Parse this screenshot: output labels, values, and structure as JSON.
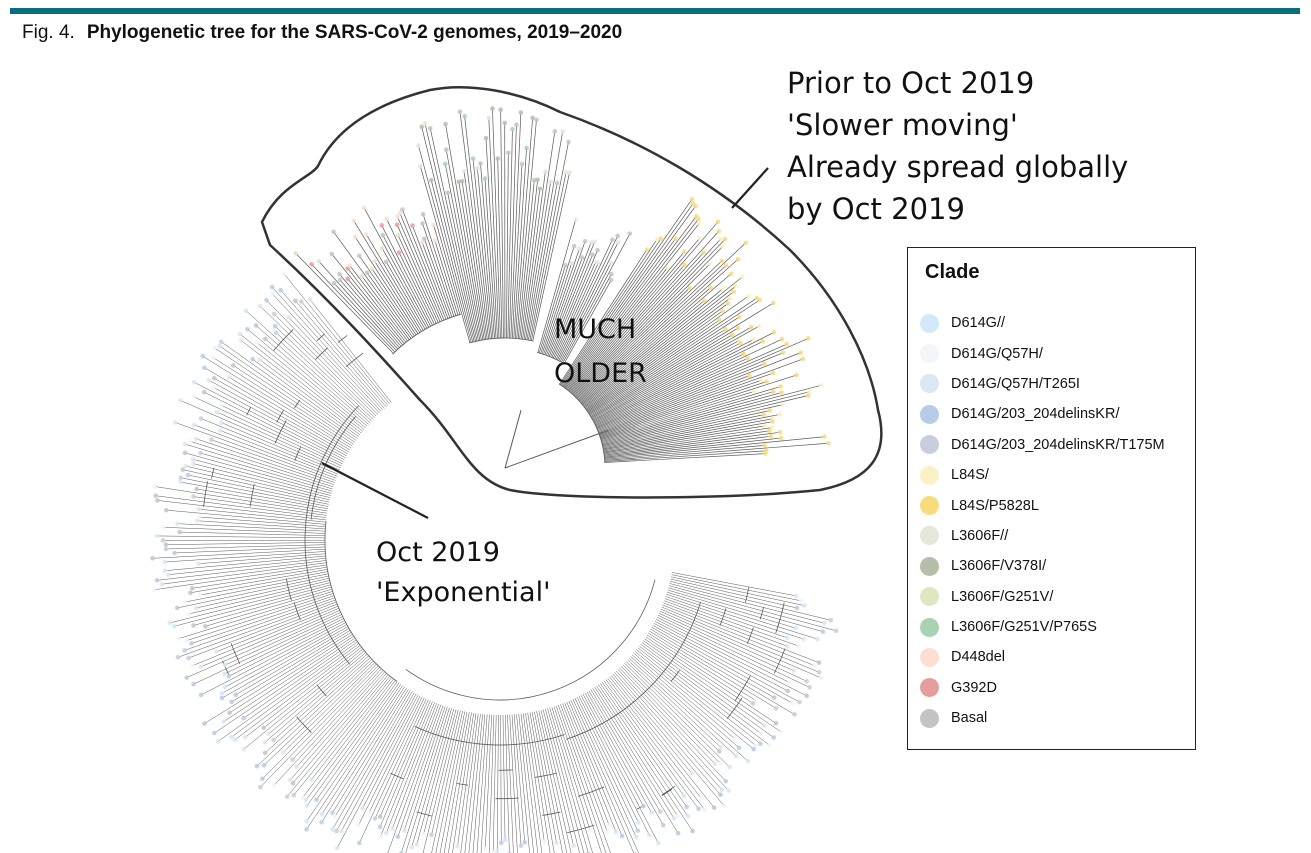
{
  "figure": {
    "number": "Fig. 4.",
    "title": "Phylogenetic tree for the SARS-CoV-2 genomes, 2019–2020"
  },
  "annotations": {
    "prior": [
      "Prior to Oct 2019",
      "'Slower moving'",
      "Already spread globally",
      "by Oct 2019"
    ],
    "older": [
      "MUCH",
      "OLDER"
    ],
    "exponential": [
      "Oct 2019",
      "'Exponential'"
    ]
  },
  "legend": {
    "title": "Clade",
    "items": [
      {
        "label": "D614G//",
        "color": "#d3e9f8"
      },
      {
        "label": "D614G/Q57H/",
        "color": "#f2f5fa"
      },
      {
        "label": "D614G/Q57H/T265I",
        "color": "#dde6f5"
      },
      {
        "label": "D614G/203_204delinsKR/",
        "color": "#b7cce6"
      },
      {
        "label": "D614G/203_204delinsKR/T175M",
        "color": "#c9cedf"
      },
      {
        "label": "L84S/",
        "color": "#fcf1c6"
      },
      {
        "label": "L84S/P5828L",
        "color": "#f8dc7e"
      },
      {
        "label": "L3606F//",
        "color": "#e5e7d8"
      },
      {
        "label": "L3606F/V378I/",
        "color": "#b7bea8"
      },
      {
        "label": "L3606F/G251V/",
        "color": "#dde8c2"
      },
      {
        "label": "L3606F/G251V/P765S",
        "color": "#a9d2b0"
      },
      {
        "label": "D448del",
        "color": "#fbe0d1"
      },
      {
        "label": "G392D",
        "color": "#e69d9d"
      },
      {
        "label": "Basal",
        "color": "#c4c4c4"
      }
    ]
  },
  "colors": {
    "accent_rule": "#0a6f7c",
    "branch": "#5a5a5a",
    "outline": "#333333"
  }
}
